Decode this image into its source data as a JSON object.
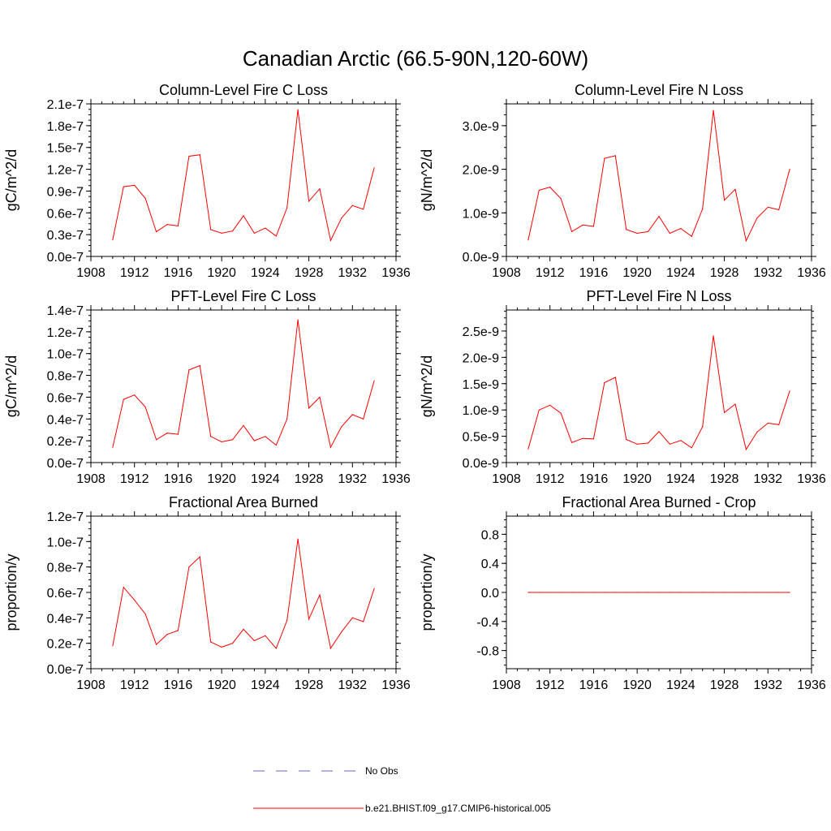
{
  "figure_title": "Canadian Arctic (66.5-90N,120-60W)",
  "legend": {
    "obs_label": "No Obs",
    "model_label": "b.e21.BHIST.f09_g17.CMIP6-historical.005",
    "obs_color": "#6666cc",
    "model_color": "#ff0000"
  },
  "chart_data": [
    {
      "type": "line",
      "title": "Column-Level Fire C Loss",
      "ylabel": "gC/m^2/d",
      "xlabel": "",
      "xlim": [
        1908,
        1936
      ],
      "ylim": [
        0,
        2.1e-07
      ],
      "xticks": [
        1908,
        1912,
        1916,
        1920,
        1924,
        1928,
        1932,
        1936
      ],
      "yticks": [
        0,
        3e-08,
        6e-08,
        9e-08,
        1.2e-07,
        1.5e-07,
        1.8e-07,
        2.1e-07
      ],
      "ytick_labels": [
        "0.0e-7",
        "0.3e-7",
        "0.6e-7",
        "0.9e-7",
        "1.2e-7",
        "1.5e-7",
        "1.8e-7",
        "2.1e-7"
      ],
      "series": [
        {
          "name": "b.e21.BHIST.f09_g17.CMIP6-historical.005",
          "x": [
            1910,
            1911,
            1912,
            1913,
            1914,
            1915,
            1916,
            1917,
            1918,
            1919,
            1920,
            1921,
            1922,
            1923,
            1924,
            1925,
            1926,
            1927,
            1928,
            1929,
            1930,
            1931,
            1932,
            1933,
            1934
          ],
          "values": [
            2.3e-08,
            9.6e-08,
            9.8e-08,
            8e-08,
            3.4e-08,
            4.4e-08,
            4.2e-08,
            1.38e-07,
            1.4e-07,
            3.7e-08,
            3.2e-08,
            3.5e-08,
            5.6e-08,
            3.2e-08,
            3.9e-08,
            2.8e-08,
            6.7e-08,
            2.02e-07,
            7.6e-08,
            9.3e-08,
            2.2e-08,
            5.3e-08,
            7e-08,
            6.5e-08,
            1.22e-07
          ]
        }
      ]
    },
    {
      "type": "line",
      "title": "Column-Level Fire N Loss",
      "ylabel": "gN/m^2/d",
      "xlabel": "",
      "xlim": [
        1908,
        1936
      ],
      "ylim": [
        0,
        3.5e-09
      ],
      "xticks": [
        1908,
        1912,
        1916,
        1920,
        1924,
        1928,
        1932,
        1936
      ],
      "yticks": [
        0,
        1e-09,
        2e-09,
        3e-09
      ],
      "ytick_labels": [
        "0.0e-9",
        "1.0e-9",
        "2.0e-9",
        "3.0e-9"
      ],
      "series": [
        {
          "name": "b.e21.BHIST.f09_g17.CMIP6-historical.005",
          "x": [
            1910,
            1911,
            1912,
            1913,
            1914,
            1915,
            1916,
            1917,
            1918,
            1919,
            1920,
            1921,
            1922,
            1923,
            1924,
            1925,
            1926,
            1927,
            1928,
            1929,
            1930,
            1931,
            1932,
            1933,
            1934
          ],
          "values": [
            3.8e-10,
            1.52e-09,
            1.59e-09,
            1.33e-09,
            5.7e-10,
            7.2e-10,
            6.9e-10,
            2.25e-09,
            2.31e-09,
            6.2e-10,
            5.3e-10,
            5.7e-10,
            9.2e-10,
            5.3e-10,
            6.4e-10,
            4.6e-10,
            1.09e-09,
            3.35e-09,
            1.29e-09,
            1.54e-09,
            3.6e-10,
            8.8e-10,
            1.13e-09,
            1.07e-09,
            2e-09
          ]
        }
      ]
    },
    {
      "type": "line",
      "title": "PFT-Level Fire C Loss",
      "ylabel": "gC/m^2/d",
      "xlabel": "",
      "xlim": [
        1908,
        1936
      ],
      "ylim": [
        0,
        1.4e-07
      ],
      "xticks": [
        1908,
        1912,
        1916,
        1920,
        1924,
        1928,
        1932,
        1936
      ],
      "yticks": [
        0,
        2e-08,
        4e-08,
        6e-08,
        8e-08,
        1e-07,
        1.2e-07,
        1.4e-07
      ],
      "ytick_labels": [
        "0.0e-7",
        "0.2e-7",
        "0.4e-7",
        "0.6e-7",
        "0.8e-7",
        "1.0e-7",
        "1.2e-7",
        "1.4e-7"
      ],
      "series": [
        {
          "name": "b.e21.BHIST.f09_g17.CMIP6-historical.005",
          "x": [
            1910,
            1911,
            1912,
            1913,
            1914,
            1915,
            1916,
            1917,
            1918,
            1919,
            1920,
            1921,
            1922,
            1923,
            1924,
            1925,
            1926,
            1927,
            1928,
            1929,
            1930,
            1931,
            1932,
            1933,
            1934
          ],
          "values": [
            1.4e-08,
            5.8e-08,
            6.2e-08,
            5.1e-08,
            2.1e-08,
            2.7e-08,
            2.6e-08,
            8.5e-08,
            8.9e-08,
            2.4e-08,
            1.9e-08,
            2.1e-08,
            3.4e-08,
            2e-08,
            2.4e-08,
            1.6e-08,
            4e-08,
            1.31e-07,
            5e-08,
            6e-08,
            1.4e-08,
            3.3e-08,
            4.4e-08,
            4e-08,
            7.5e-08
          ]
        }
      ]
    },
    {
      "type": "line",
      "title": "PFT-Level Fire N Loss",
      "ylabel": "gN/m^2/d",
      "xlabel": "",
      "xlim": [
        1908,
        1936
      ],
      "ylim": [
        0,
        2.9e-09
      ],
      "xticks": [
        1908,
        1912,
        1916,
        1920,
        1924,
        1928,
        1932,
        1936
      ],
      "yticks": [
        0,
        5e-10,
        1e-09,
        1.5e-09,
        2e-09,
        2.5e-09
      ],
      "ytick_labels": [
        "0.0e-9",
        "0.5e-9",
        "1.0e-9",
        "1.5e-9",
        "2.0e-9",
        "2.5e-9"
      ],
      "series": [
        {
          "name": "b.e21.BHIST.f09_g17.CMIP6-historical.005",
          "x": [
            1910,
            1911,
            1912,
            1913,
            1914,
            1915,
            1916,
            1917,
            1918,
            1919,
            1920,
            1921,
            1922,
            1923,
            1924,
            1925,
            1926,
            1927,
            1928,
            1929,
            1930,
            1931,
            1932,
            1933,
            1934
          ],
          "values": [
            2.6e-10,
            1e-09,
            1.09e-09,
            9.4e-10,
            3.8e-10,
            4.6e-10,
            4.5e-10,
            1.52e-09,
            1.62e-09,
            4.4e-10,
            3.5e-10,
            3.7e-10,
            5.9e-10,
            3.5e-10,
            4.2e-10,
            2.8e-10,
            6.8e-10,
            2.41e-09,
            9.5e-10,
            1.11e-09,
            2.5e-10,
            5.8e-10,
            7.5e-10,
            7.2e-10,
            1.36e-09
          ]
        }
      ]
    },
    {
      "type": "line",
      "title": "Fractional Area Burned",
      "ylabel": "proportion/y",
      "xlabel": "",
      "xlim": [
        1908,
        1936
      ],
      "ylim": [
        0,
        1.2e-07
      ],
      "xticks": [
        1908,
        1912,
        1916,
        1920,
        1924,
        1928,
        1932,
        1936
      ],
      "yticks": [
        0,
        2e-08,
        4e-08,
        6e-08,
        8e-08,
        1e-07,
        1.2e-07
      ],
      "ytick_labels": [
        "0.0e-7",
        "0.2e-7",
        "0.4e-7",
        "0.6e-7",
        "0.8e-7",
        "1.0e-7",
        "1.2e-7"
      ],
      "series": [
        {
          "name": "b.e21.BHIST.f09_g17.CMIP6-historical.005",
          "x": [
            1910,
            1911,
            1912,
            1913,
            1914,
            1915,
            1916,
            1917,
            1918,
            1919,
            1920,
            1921,
            1922,
            1923,
            1924,
            1925,
            1926,
            1927,
            1928,
            1929,
            1930,
            1931,
            1932,
            1933,
            1934
          ],
          "values": [
            1.8e-08,
            6.4e-08,
            5.4e-08,
            4.3e-08,
            1.9e-08,
            2.7e-08,
            3e-08,
            8e-08,
            8.8e-08,
            2.1e-08,
            1.7e-08,
            2e-08,
            3.1e-08,
            2.2e-08,
            2.6e-08,
            1.6e-08,
            3.8e-08,
            1.02e-07,
            3.9e-08,
            5.8e-08,
            1.6e-08,
            2.9e-08,
            4e-08,
            3.7e-08,
            6.3e-08
          ]
        }
      ]
    },
    {
      "type": "line",
      "title": "Fractional Area Burned - Crop",
      "ylabel": "proportion/y",
      "xlabel": "",
      "xlim": [
        1908,
        1936
      ],
      "ylim": [
        -1.05,
        1.05
      ],
      "xticks": [
        1908,
        1912,
        1916,
        1920,
        1924,
        1928,
        1932,
        1936
      ],
      "yticks": [
        -0.8,
        -0.4,
        0,
        0.4,
        0.8
      ],
      "ytick_labels": [
        "-0.8",
        "-0.4",
        "0.0",
        "0.4",
        "0.8"
      ],
      "series": [
        {
          "name": "b.e21.BHIST.f09_g17.CMIP6-historical.005",
          "x": [
            1910,
            1911,
            1912,
            1913,
            1914,
            1915,
            1916,
            1917,
            1918,
            1919,
            1920,
            1921,
            1922,
            1923,
            1924,
            1925,
            1926,
            1927,
            1928,
            1929,
            1930,
            1931,
            1932,
            1933,
            1934
          ],
          "values": [
            0,
            0,
            0,
            0,
            0,
            0,
            0,
            0,
            0,
            0,
            0,
            0,
            0,
            0,
            0,
            0,
            0,
            0,
            0,
            0,
            0,
            0,
            0,
            0,
            0
          ]
        }
      ]
    }
  ]
}
